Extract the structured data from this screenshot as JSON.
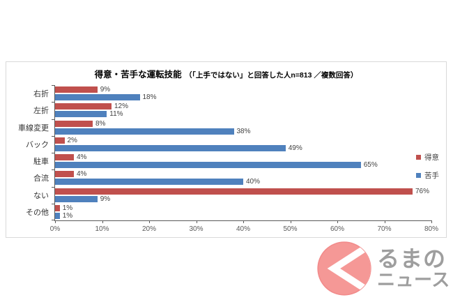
{
  "chart": {
    "title_main": "得意・苦手な運転技能",
    "title_sub": "（「上手ではない」と回答した人n=813 ／複数回答）"
  },
  "chart_data": {
    "type": "bar",
    "orientation": "horizontal",
    "title": "得意・苦手な運転技能（「上手ではない」と回答した人n=813 ／複数回答）",
    "categories": [
      "右折",
      "左折",
      "車線変更",
      "バック",
      "駐車",
      "合流",
      "ない",
      "その他"
    ],
    "series": [
      {
        "name": "得意",
        "color": "#c0504d",
        "values": [
          9,
          12,
          8,
          2,
          4,
          4,
          76,
          1
        ]
      },
      {
        "name": "苦手",
        "color": "#4f81bd",
        "values": [
          18,
          11,
          38,
          49,
          65,
          40,
          9,
          1
        ]
      }
    ],
    "value_suffix": "%",
    "x_tick_labels": [
      "0%",
      "10%",
      "20%",
      "30%",
      "40%",
      "50%",
      "60%",
      "70%",
      "80%"
    ],
    "xlim": [
      0,
      80
    ],
    "grid": false,
    "legend_position": "right",
    "axis_color": "#595959",
    "label_color": "#404040"
  },
  "watermark": {
    "line1": "るまの",
    "line2": "ニュース",
    "circle_color": "#f59896",
    "circle_rim_color": "#f28b8b",
    "chevron_color": "#ffffff",
    "text_color": "#9e9e9e"
  }
}
